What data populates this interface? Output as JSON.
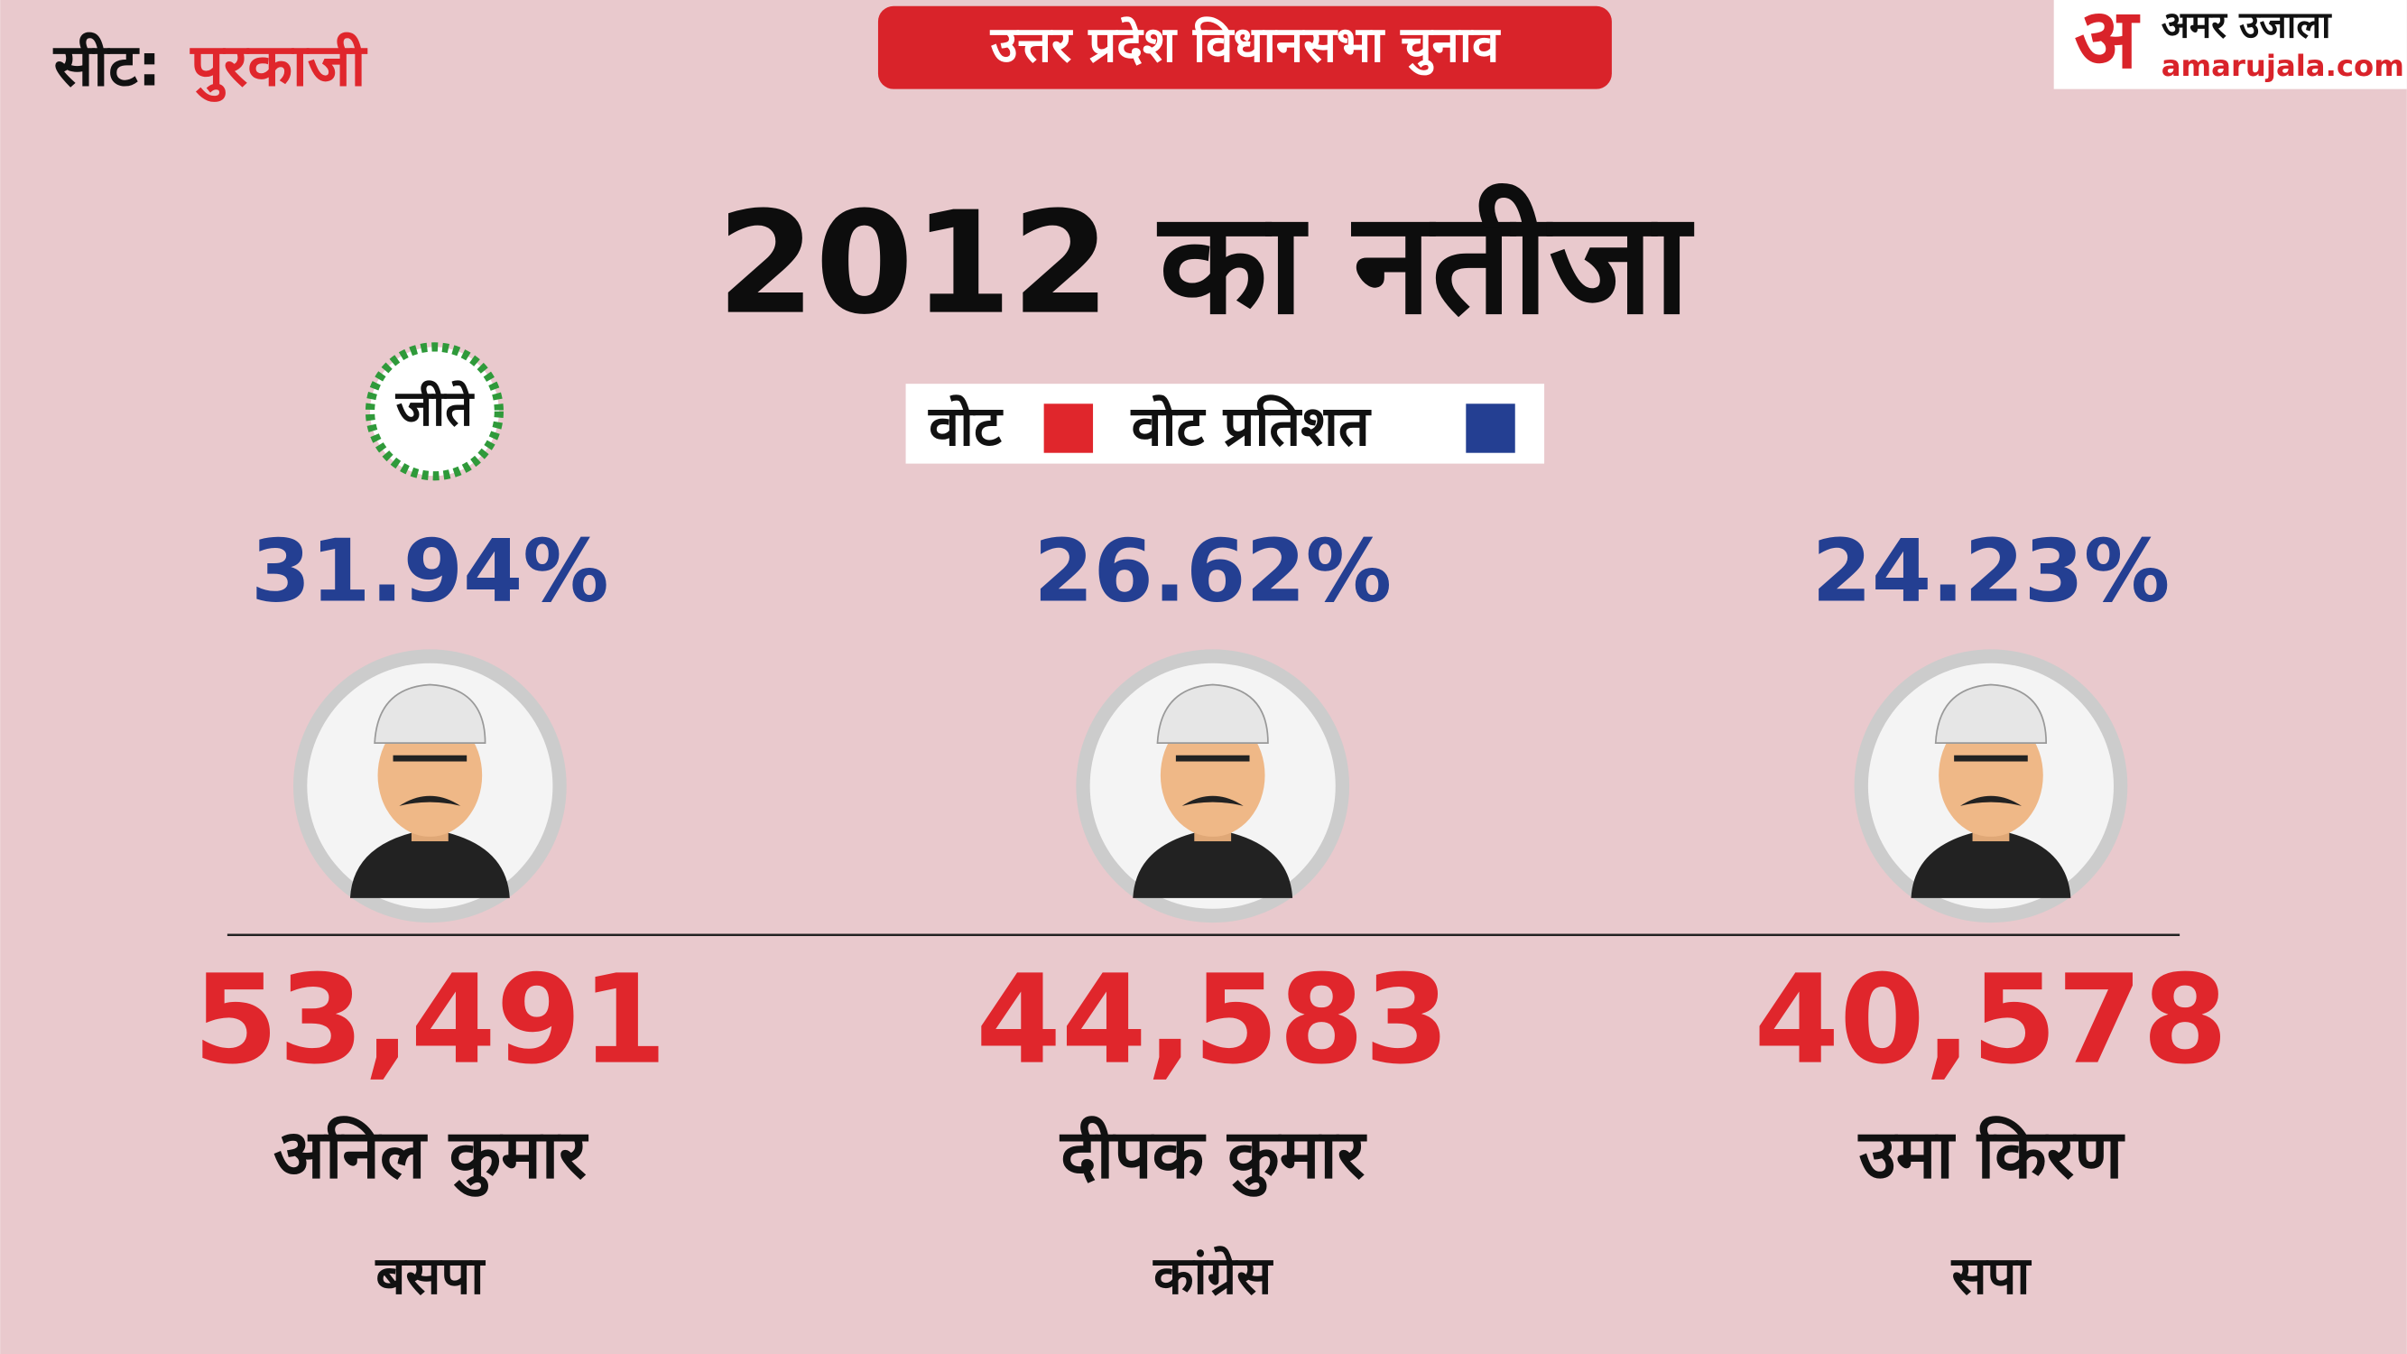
{
  "seat": {
    "label": "सीट:",
    "name": "पुरकाजी"
  },
  "banner": "उत्तर प्रदेश विधानसभा चुनाव",
  "logo": {
    "mark": "अ",
    "hindi": "अमर उजाला",
    "site": "amarujala.com"
  },
  "title": "2012 का नतीजा",
  "legend": [
    {
      "label": "वोट",
      "color": "#e0262c"
    },
    {
      "label": "वोट प्रतिशत",
      "color": "#243f92"
    }
  ],
  "winner_badge": "जीते",
  "candidates": [
    {
      "percent": "31.94%",
      "votes": "53,491",
      "name": "अनिल कुमार",
      "party": "बसपा"
    },
    {
      "percent": "26.62%",
      "votes": "44,583",
      "name": "दीपक कुमार",
      "party": "कांग्रेस"
    },
    {
      "percent": "24.23%",
      "votes": "40,578",
      "name": "उमा किरण",
      "party": "सपा"
    }
  ]
}
